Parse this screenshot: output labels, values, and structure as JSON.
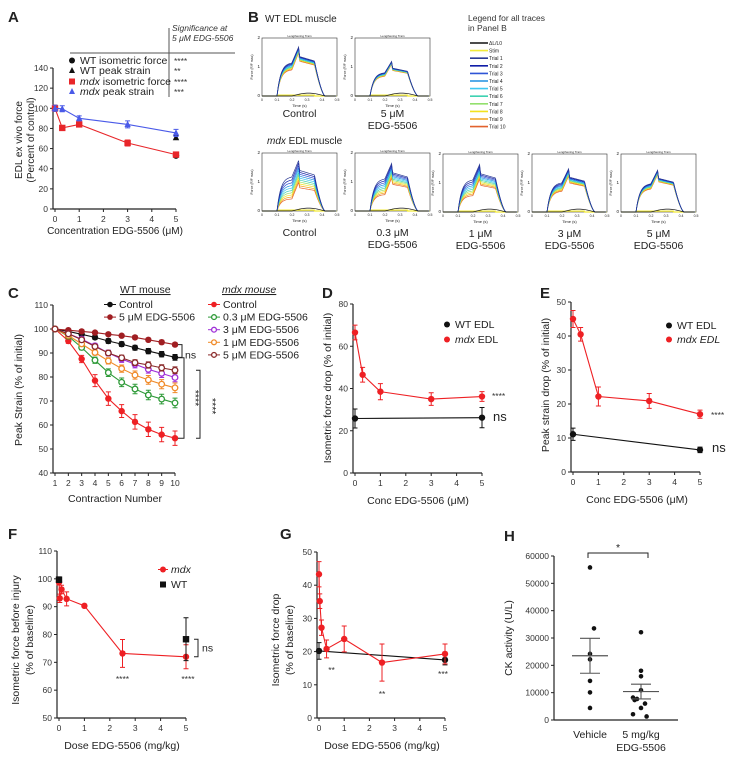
{
  "panel_letters": [
    "A",
    "B",
    "C",
    "D",
    "E",
    "F",
    "G",
    "H"
  ],
  "chart_data": [
    {
      "panel": "A",
      "type": "line",
      "xlabel": "Concentration EDG-5506 (μM)",
      "ylabel": [
        "EDL ex vivo force",
        "(Percent of control)"
      ],
      "xlim": [
        0,
        5
      ],
      "ylim": [
        0,
        140
      ],
      "xticks": [
        0,
        1,
        2,
        3,
        4,
        5
      ],
      "yticks": [
        0,
        20,
        40,
        60,
        80,
        100,
        120,
        140
      ],
      "legend_header": [
        "Significance at",
        "5 μM EDG-5506"
      ],
      "series": [
        {
          "name": "WT isometric force",
          "name_prefix": "",
          "name_rest": "WT isometric force",
          "significance": "****",
          "color": "#111111",
          "marker": "circle",
          "line": false,
          "x": [
            0,
            5
          ],
          "y": [
            100,
            53
          ],
          "err": [
            3,
            1.5
          ]
        },
        {
          "name": "WT peak strain",
          "name_prefix": "",
          "name_rest": "WT peak strain",
          "significance": "**",
          "color": "#111111",
          "marker": "triangle",
          "line": false,
          "x": [
            0,
            5
          ],
          "y": [
            100,
            71
          ],
          "err": [
            2,
            1.5
          ]
        },
        {
          "name": "mdx isometric force",
          "name_prefix": "mdx",
          "name_rest": " isometric force",
          "significance": "****",
          "color": "#e8262a",
          "marker": "square",
          "line": true,
          "x": [
            0,
            0.3,
            1,
            3,
            5
          ],
          "y": [
            100,
            80.5,
            84,
            65.5,
            54
          ],
          "err": [
            3,
            2,
            2.5,
            3,
            2
          ]
        },
        {
          "name": "mdx peak strain",
          "name_prefix": "mdx",
          "name_rest": " peak strain",
          "significance": "***",
          "color": "#4a5ae8",
          "marker": "triangle",
          "line": true,
          "x": [
            0,
            0.3,
            1,
            3,
            5
          ],
          "y": [
            100,
            99.5,
            90,
            84,
            75.5
          ],
          "err": [
            3,
            3,
            2.5,
            3.5,
            3.5
          ]
        }
      ]
    },
    {
      "panel": "B",
      "type": "line",
      "row_titles": [
        {
          "prefix": "",
          "rest": "WT EDL muscle"
        },
        {
          "prefix": "mdx",
          "rest": " EDL muscle"
        }
      ],
      "plot_title": "Lengthening Train",
      "xlabel": "Time (s)",
      "ylabel": "Force (F/F max)",
      "xlim": [
        0,
        0.5
      ],
      "ylim": [
        0,
        2
      ],
      "xticks": [
        "0",
        "0.1",
        "0.2",
        "0.3",
        "0.4",
        "0.5"
      ],
      "yticks": [
        "0",
        "1",
        "2"
      ],
      "legend_title": [
        "Legend for all traces",
        "in Panel B"
      ],
      "legend": [
        {
          "name": "ΔL/L0",
          "color": "#111111"
        },
        {
          "name": "Stim",
          "color": "#f2ea3a"
        },
        {
          "name": "Trial 1",
          "color": "#2b3a93"
        },
        {
          "name": "Trial 2",
          "color": "#101ea8"
        },
        {
          "name": "Trial 3",
          "color": "#2f55d6"
        },
        {
          "name": "Trial 4",
          "color": "#1e8fe0"
        },
        {
          "name": "Trial 5",
          "color": "#3fc8f2"
        },
        {
          "name": "Trial 6",
          "color": "#3fd2b2"
        },
        {
          "name": "Trial 7",
          "color": "#93e06e"
        },
        {
          "name": "Trial 8",
          "color": "#f2e21f"
        },
        {
          "name": "Trial 9",
          "color": "#f2a41f"
        },
        {
          "name": "Trial 10",
          "color": "#e2622e"
        }
      ],
      "subplots": [
        {
          "group": "WT",
          "label": [
            "Control"
          ],
          "trial1_peak": 1.7,
          "trial10_peak": 1.5
        },
        {
          "group": "WT",
          "label": [
            "5 μM",
            "EDG-5506"
          ],
          "trial1_peak": 1.2,
          "trial10_peak": 1.1
        },
        {
          "group": "mdx",
          "label": [
            "Control"
          ],
          "trial1_peak": 1.75,
          "trial10_peak": 1.0
        },
        {
          "group": "mdx",
          "label": [
            "0.3 μM",
            "EDG-5506"
          ],
          "trial1_peak": 1.65,
          "trial10_peak": 1.15
        },
        {
          "group": "mdx",
          "label": [
            "1 μM",
            "EDG-5506"
          ],
          "trial1_peak": 1.65,
          "trial10_peak": 1.15
        },
        {
          "group": "mdx",
          "label": [
            "3 μM",
            "EDG-5506"
          ],
          "trial1_peak": 1.5,
          "trial10_peak": 1.25
        },
        {
          "group": "mdx",
          "label": [
            "5 μM",
            "EDG-5506"
          ],
          "trial1_peak": 1.45,
          "trial10_peak": 1.3
        }
      ]
    },
    {
      "panel": "C",
      "type": "line",
      "xlabel": "Contraction Number",
      "ylabel": "Peak Strain (% of initial)",
      "xlim": [
        1,
        10
      ],
      "ylim": [
        40,
        110
      ],
      "xticks": [
        1,
        2,
        3,
        4,
        5,
        6,
        7,
        8,
        9,
        10
      ],
      "yticks": [
        40,
        50,
        60,
        70,
        80,
        90,
        100,
        110
      ],
      "legend_groups": [
        {
          "title": "WT mouse",
          "italic": false,
          "series": [
            0,
            1
          ]
        },
        {
          "title": "mdx mouse",
          "italic": true,
          "series": [
            2,
            3,
            4,
            5,
            6
          ]
        }
      ],
      "annotations": [
        "ns",
        "****",
        "****"
      ],
      "series": [
        {
          "name": "Control",
          "color": "#111111",
          "marker": "circle",
          "line": true,
          "y": [
            100,
            99,
            97.8,
            96.5,
            95,
            93.7,
            92.2,
            90.8,
            89.5,
            88.2
          ],
          "err": [
            0,
            0.6,
            0.8,
            0.9,
            1,
            1,
            1,
            1.1,
            1.1,
            1.2
          ]
        },
        {
          "name": "5 μM EDG-5506",
          "color": "#a01e22",
          "marker": "circle",
          "line": true,
          "y": [
            100,
            99.5,
            99,
            98.5,
            97.8,
            97.2,
            96.5,
            95.5,
            94.5,
            93.5
          ],
          "err": [
            0,
            0.4,
            0.5,
            0.5,
            0.6,
            0.6,
            0.7,
            0.7,
            0.8,
            0.8
          ]
        },
        {
          "name": "Control",
          "color": "#ee2024",
          "marker": "circle",
          "line": true,
          "y": [
            100,
            95,
            87.5,
            78.5,
            71,
            65.8,
            61.3,
            58.2,
            56,
            54.5
          ],
          "err": [
            0,
            1,
            1.5,
            2.5,
            2.8,
            2.7,
            3,
            3,
            3,
            3
          ]
        },
        {
          "name": "0.3 μM EDG-5506",
          "color": "#2e9a38",
          "marker": "open-circle",
          "line": true,
          "y": [
            100,
            97,
            92.3,
            87,
            81.8,
            77.8,
            75,
            72.5,
            70.8,
            69.2
          ],
          "err": [
            0,
            0.8,
            1,
            1.3,
            1.6,
            1.8,
            2,
            2,
            2,
            2
          ]
        },
        {
          "name": "3 μM EDG-5506",
          "color": "#a030d8",
          "marker": "open-circle",
          "line": true,
          "y": [
            100,
            98,
            95.8,
            93,
            90,
            87.5,
            85.3,
            83.2,
            81.5,
            79.8
          ],
          "err": [
            0,
            0.6,
            0.8,
            1,
            1.2,
            1.4,
            1.5,
            1.6,
            1.7,
            1.8
          ]
        },
        {
          "name": "1 μM EDG-5506",
          "color": "#f08a28",
          "marker": "open-circle",
          "line": true,
          "y": [
            100,
            97.3,
            93.8,
            90.2,
            86.7,
            83.5,
            80.8,
            78.8,
            77,
            75.5
          ],
          "err": [
            0,
            0.7,
            0.9,
            1.1,
            1.3,
            1.5,
            1.7,
            1.8,
            1.9,
            2
          ]
        },
        {
          "name": "5 μM EDG-5506",
          "color": "#8a2a2a",
          "marker": "open-circle",
          "line": true,
          "y": [
            100,
            98,
            95.5,
            92.7,
            90,
            88,
            86,
            85,
            83.8,
            82.8
          ],
          "err": [
            0,
            0.5,
            0.7,
            0.9,
            1,
            1.1,
            1.2,
            1.3,
            1.3,
            1.4
          ]
        }
      ]
    },
    {
      "panel": "D",
      "type": "line",
      "xlabel": "Conc EDG-5506 (μM)",
      "ylabel": "Isometric force drop (% of initial)",
      "xlim": [
        0,
        5
      ],
      "ylim": [
        0,
        80
      ],
      "xticks": [
        0,
        1,
        2,
        3,
        4,
        5
      ],
      "yticks": [
        0,
        20,
        40,
        60,
        80
      ],
      "annotations": [
        "****",
        "ns"
      ],
      "series": [
        {
          "name": "WT EDL",
          "name_prefix": "",
          "name_rest": "WT EDL",
          "color": "#111111",
          "marker": "circle",
          "line": true,
          "x": [
            0,
            5
          ],
          "y": [
            25.8,
            26.2
          ],
          "err": [
            4.5,
            4.8
          ]
        },
        {
          "name": "mdx EDL",
          "name_prefix": "mdx",
          "name_rest": " EDL",
          "color": "#ee2024",
          "marker": "circle",
          "line": true,
          "x": [
            0,
            0.3,
            1,
            3,
            5
          ],
          "y": [
            66.5,
            46.5,
            38.5,
            35,
            36.2
          ],
          "err": [
            3.5,
            3.5,
            3.8,
            3,
            2.3
          ]
        }
      ]
    },
    {
      "panel": "E",
      "type": "line",
      "xlabel": "Conc EDG-5506 (μM)",
      "ylabel": "Peak strain drop (% of initial)",
      "xlim": [
        0,
        5
      ],
      "ylim": [
        0,
        50
      ],
      "xticks": [
        0,
        1,
        2,
        3,
        4,
        5
      ],
      "yticks": [
        0,
        10,
        20,
        30,
        40,
        50
      ],
      "annotations": [
        "****",
        "ns"
      ],
      "series": [
        {
          "name": "WT EDL",
          "name_prefix": "",
          "name_rest": "WT EDL",
          "color": "#111111",
          "marker": "circle",
          "line": true,
          "x": [
            0,
            5
          ],
          "y": [
            11.1,
            6.5
          ],
          "err": [
            1.8,
            0.8
          ]
        },
        {
          "name": "mdx EDL",
          "name_prefix": "",
          "name_rest": "mdx EDL",
          "italic": true,
          "color": "#ee2024",
          "marker": "circle",
          "line": true,
          "x": [
            0,
            0.3,
            1,
            3,
            5
          ],
          "y": [
            45,
            40.5,
            22.2,
            20.9,
            17
          ],
          "err": [
            2.5,
            2,
            2.8,
            2.2,
            1.2
          ]
        }
      ]
    },
    {
      "panel": "F",
      "type": "line",
      "xlabel": "Dose EDG-5506 (mg/kg)",
      "ylabel": [
        "Isometric force before injury",
        "(% of baseline)"
      ],
      "xlim": [
        0,
        5
      ],
      "ylim": [
        50,
        110
      ],
      "xticks": [
        0,
        1,
        2,
        3,
        4,
        5
      ],
      "yticks": [
        50,
        60,
        70,
        80,
        90,
        100,
        110
      ],
      "annotations": [
        "****",
        "****",
        "ns"
      ],
      "series": [
        {
          "name": "mdx",
          "name_prefix": "mdx",
          "name_rest": "",
          "color": "#ee2024",
          "marker": "circle",
          "line": true,
          "x": [
            0,
            0.03,
            0.1,
            0.3,
            1,
            2.5,
            5
          ],
          "y": [
            98.8,
            93,
            96.2,
            92.8,
            90.3,
            73.2,
            72
          ],
          "err": [
            1,
            1.5,
            1.5,
            2.5,
            0.6,
            5,
            4.3
          ]
        },
        {
          "name": "WT",
          "name_prefix": "",
          "name_rest": "WT",
          "color": "#111111",
          "marker": "square",
          "line": false,
          "x": [
            0,
            5
          ],
          "y": [
            99.7,
            78.3
          ],
          "err": [
            1,
            7.7
          ]
        }
      ]
    },
    {
      "panel": "G",
      "type": "line",
      "xlabel": "Dose EDG-5506 (mg/kg)",
      "ylabel": [
        "Isometric force drop",
        "(% of baseline)"
      ],
      "xlim": [
        0,
        5
      ],
      "ylim": [
        0,
        50
      ],
      "xticks": [
        0,
        1,
        2,
        3,
        4,
        5
      ],
      "yticks": [
        0,
        10,
        20,
        30,
        40,
        50
      ],
      "annotations": [
        "**",
        "**",
        "***"
      ],
      "series": [
        {
          "name": "WT",
          "color": "#111111",
          "marker": "circle",
          "line": true,
          "x": [
            0,
            5
          ],
          "y": [
            20.2,
            17.5
          ],
          "err": [
            2.5,
            1.5
          ]
        },
        {
          "name": "mdx",
          "color": "#ee2024",
          "marker": "circle",
          "line": true,
          "x": [
            0,
            0.03,
            0.1,
            0.3,
            1,
            2.5,
            5
          ],
          "y": [
            43.3,
            35.2,
            27.2,
            20.8,
            23.8,
            16.7,
            19.3
          ],
          "err": [
            3.8,
            2.2,
            2.3,
            2.7,
            3.9,
            5.6,
            3
          ]
        }
      ]
    },
    {
      "panel": "H",
      "type": "scatter",
      "ylabel": "CK activity (U/L)",
      "ylim": [
        0,
        60000
      ],
      "yticks": [
        0,
        10000,
        20000,
        30000,
        40000,
        50000,
        60000
      ],
      "categories": [
        [
          "Vehicle"
        ],
        [
          "5 mg/kg",
          "EDG-5506"
        ]
      ],
      "annotations": [
        "*"
      ],
      "groups": [
        {
          "values": [
            55800,
            33500,
            24200,
            22200,
            14300,
            10100,
            4400
          ],
          "mean": 23500,
          "sem": 6400
        },
        {
          "values": [
            32100,
            18000,
            16000,
            10900,
            8200,
            7700,
            7300,
            6000,
            4400,
            2100,
            1300
          ],
          "mean": 10400,
          "sem": 2700
        }
      ]
    }
  ]
}
